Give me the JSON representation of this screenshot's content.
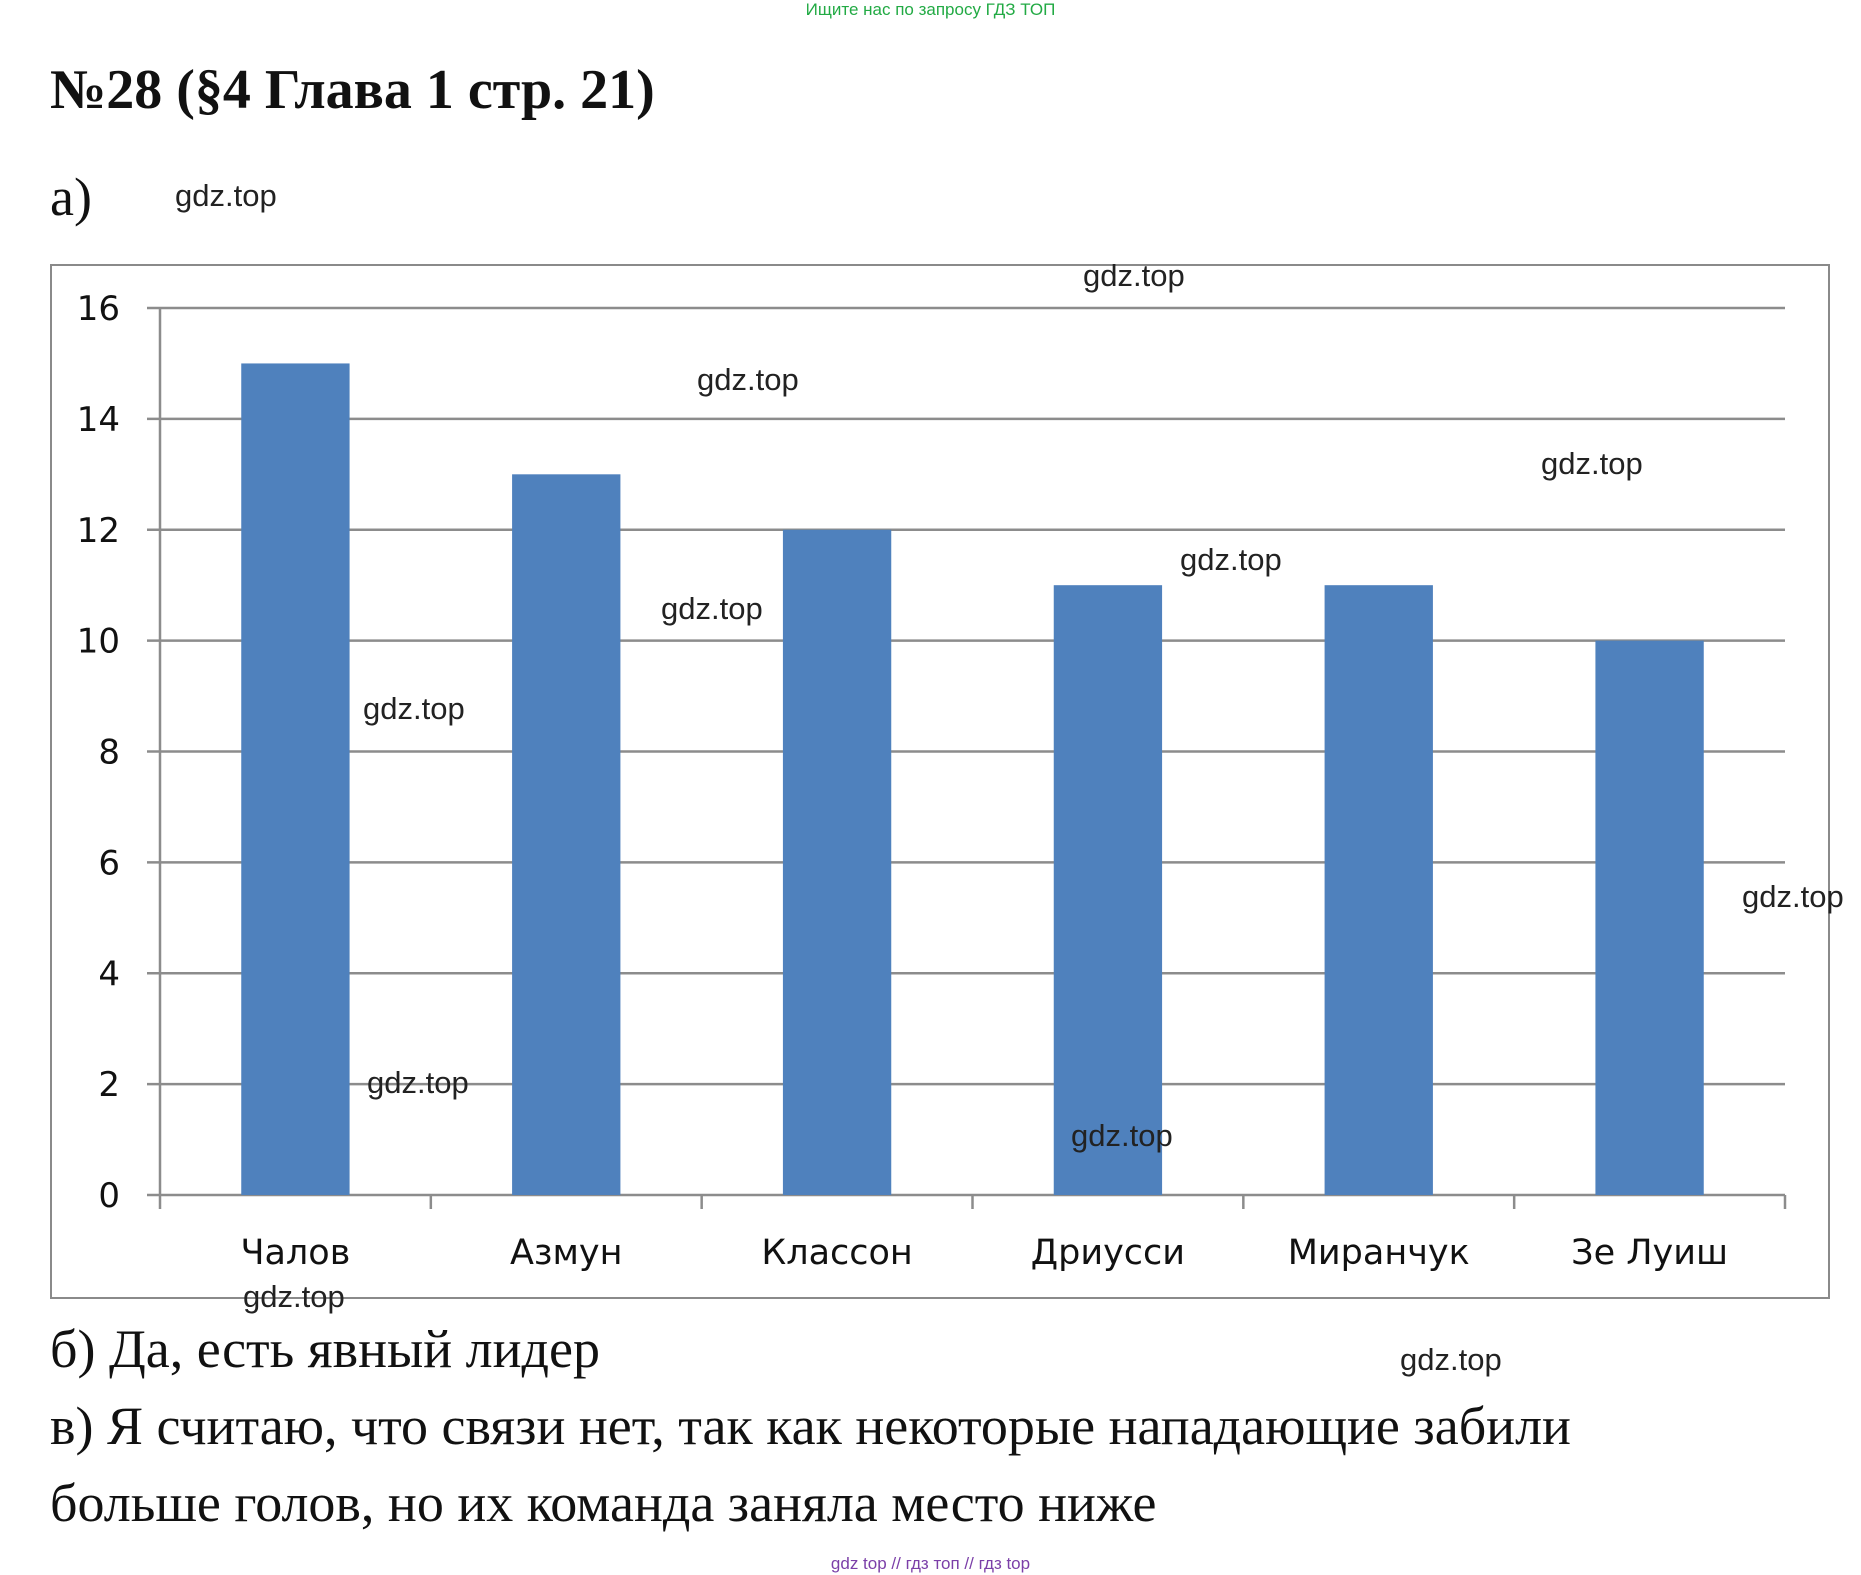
{
  "top_note": "Ищите нас по запросу ГДЗ ТОП",
  "title": "№28 (§4 Глава 1  стр. 21)",
  "part_a_label": "а)",
  "watermark": "gdz.top",
  "answer_b": "б) Да, есть явный лидер",
  "answer_c_line1": "в) Я считаю, что связи нет, так как некоторые нападающие забили",
  "answer_c_line2": "больше голов, но их команда заняла место ниже",
  "footer": "gdz top  //  гдз топ  //  гдз top",
  "colors": {
    "bar": "#4f81bd",
    "grid": "#8c8c8c",
    "top_note": "#22aa44",
    "footer": "#7b3fa8"
  },
  "chart_data": {
    "type": "bar",
    "categories": [
      "Чалов",
      "Азмун",
      "Классон",
      "Дриусси",
      "Миранчук",
      "Зе Луиш"
    ],
    "values": [
      15,
      13,
      12,
      11,
      11,
      10
    ],
    "yticks": [
      0,
      2,
      4,
      6,
      8,
      10,
      12,
      14,
      16
    ],
    "ylim": [
      0,
      16
    ],
    "grid": true,
    "legend": "none"
  }
}
